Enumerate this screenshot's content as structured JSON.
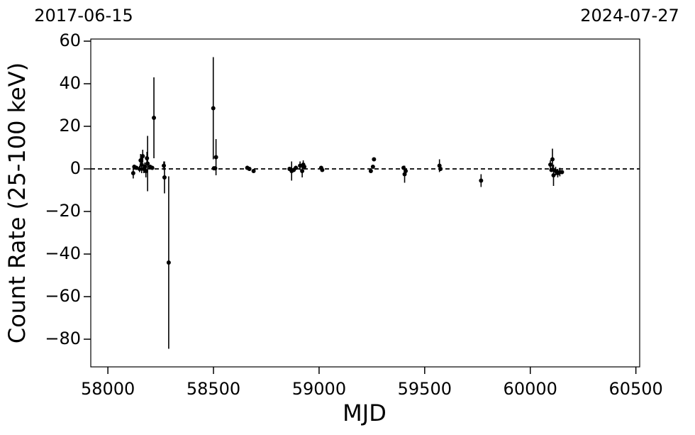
{
  "chart_data": {
    "type": "errorbar",
    "xlabel": "MJD",
    "ylabel": "Count Rate (25-100 keV)",
    "top_labels": [
      "2017-06-15",
      "2024-07-27"
    ],
    "xlim": [
      57919,
      60518
    ],
    "ylim": [
      -93,
      61
    ],
    "xticks": [
      58000,
      58500,
      59000,
      59500,
      60000,
      60500
    ],
    "yticks": [
      {
        "value": -80,
        "label": "−80"
      },
      {
        "value": -60,
        "label": "−60"
      },
      {
        "value": -40,
        "label": "−40"
      },
      {
        "value": -20,
        "label": "−20"
      },
      0,
      20,
      40,
      60
    ],
    "hline": 0,
    "color": "#000000",
    "series": [
      {
        "x": [
          58120,
          58125,
          58135,
          58150,
          58155,
          58160,
          58165,
          58170,
          58175,
          58180,
          58185,
          58188,
          58200,
          58210,
          58218,
          58265,
          58268,
          58288,
          58499,
          58502,
          58508,
          58512,
          58660,
          58670,
          58690,
          58860,
          58870,
          58880,
          58890,
          58910,
          58920,
          58925,
          58930,
          59010,
          59015,
          59245,
          59255,
          59260,
          59400,
          59405,
          59410,
          59570,
          59575,
          59767,
          60095,
          60100,
          60105,
          60110,
          60120,
          60130,
          60140,
          60150
        ],
        "values": [
          -2,
          1,
          0.5,
          0,
          4,
          2,
          6,
          0,
          1,
          -1,
          5,
          2.5,
          1,
          0.5,
          24,
          1.5,
          -4,
          -44,
          28.5,
          0.3,
          0.3,
          5.5,
          0.5,
          0,
          -1,
          0,
          -1,
          -0.5,
          0.5,
          1.5,
          -1,
          2,
          1,
          0.5,
          -0.5,
          -1,
          1,
          4.5,
          0.5,
          -2.5,
          -1,
          1.5,
          0,
          -5.5,
          2,
          -0.5,
          4.5,
          -3,
          -1,
          -2,
          -1.5,
          -1.5
        ],
        "errors": [
          2.5,
          1,
          1,
          1.5,
          3,
          4,
          3,
          2,
          2,
          3,
          3,
          13,
          1,
          1,
          19,
          2,
          7.5,
          40.5,
          24,
          0.5,
          0.5,
          8.5,
          1,
          1,
          0.5,
          1,
          4.5,
          1,
          1,
          2,
          3,
          2,
          1,
          0.5,
          0.5,
          0.5,
          0.5,
          0.5,
          1,
          4,
          1,
          3,
          1,
          3,
          2,
          1,
          5,
          5,
          2,
          2,
          2,
          1
        ]
      }
    ]
  }
}
